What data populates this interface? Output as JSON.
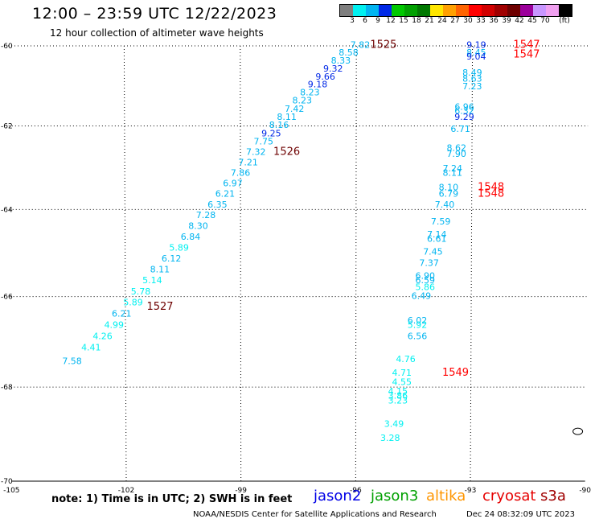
{
  "header": {
    "title": "12:00 – 23:59 UTC 12/22/2023",
    "subtitle": "12 hour collection of altimeter wave heights"
  },
  "colorbar": {
    "colors": [
      "#7f7f7f",
      "#00f0f0",
      "#00b4f0",
      "#0028e6",
      "#00c800",
      "#00a000",
      "#007800",
      "#ffe600",
      "#ffa000",
      "#ff6400",
      "#ff0000",
      "#d20000",
      "#a00000",
      "#6e0000",
      "#9b009b",
      "#c896ff",
      "#f0a0f0",
      "#000000"
    ],
    "labels": [
      "3",
      "6",
      "9",
      "12",
      "15",
      "18",
      "21",
      "24",
      "27",
      "30",
      "33",
      "36",
      "39",
      "42",
      "45",
      "70"
    ],
    "unit": "(ft)"
  },
  "map": {
    "lon_range": [
      -105,
      -90
    ],
    "lat_range": [
      -70,
      -60
    ],
    "lon_ticks": [
      "-105",
      "-102",
      "-99",
      "-96",
      "-93",
      "-90"
    ],
    "lon_tick_values": [
      -105,
      -102,
      -99,
      -96,
      -93,
      -90
    ],
    "lat_ticks": [
      "-60",
      "-62",
      "-64",
      "-66",
      "-68",
      "-70"
    ],
    "lat_tick_values": [
      -60,
      -62,
      -64,
      -66,
      -68,
      -70
    ]
  },
  "chart_data": {
    "type": "scatter",
    "xlabel": "",
    "ylabel": "",
    "series": [
      {
        "points": [
          {
            "lon": -95.9,
            "lat": -60.05,
            "v": "7.82",
            "c": "#00b4f0"
          },
          {
            "lon": -96.2,
            "lat": -60.25,
            "v": "8.58",
            "c": "#00b4f0"
          },
          {
            "lon": -96.4,
            "lat": -60.45,
            "v": "8.33",
            "c": "#00b4f0"
          },
          {
            "lon": -96.6,
            "lat": -60.65,
            "v": "9.32",
            "c": "#0028e6"
          },
          {
            "lon": -96.8,
            "lat": -60.85,
            "v": "9.66",
            "c": "#0028e6"
          },
          {
            "lon": -97.0,
            "lat": -61.05,
            "v": "9.18",
            "c": "#0028e6"
          },
          {
            "lon": -97.2,
            "lat": -61.25,
            "v": "8.23",
            "c": "#00b4f0"
          },
          {
            "lon": -97.4,
            "lat": -61.45,
            "v": "8.23",
            "c": "#00b4f0"
          },
          {
            "lon": -97.6,
            "lat": -61.65,
            "v": "7.42",
            "c": "#00b4f0"
          },
          {
            "lon": -97.8,
            "lat": -61.85,
            "v": "8.11",
            "c": "#00b4f0"
          },
          {
            "lon": -98.0,
            "lat": -62.05,
            "v": "8.16",
            "c": "#00b4f0"
          },
          {
            "lon": -98.2,
            "lat": -62.25,
            "v": "9.25",
            "c": "#0028e6"
          },
          {
            "lon": -98.4,
            "lat": -62.45,
            "v": "7.75",
            "c": "#00b4f0"
          },
          {
            "lon": -98.6,
            "lat": -62.7,
            "v": "7.32",
            "c": "#00b4f0"
          },
          {
            "lon": -98.8,
            "lat": -62.95,
            "v": "7.21",
            "c": "#00b4f0"
          },
          {
            "lon": -99.0,
            "lat": -63.2,
            "v": "7.86",
            "c": "#00b4f0"
          },
          {
            "lon": -99.2,
            "lat": -63.45,
            "v": "6.97",
            "c": "#00b4f0"
          },
          {
            "lon": -99.4,
            "lat": -63.7,
            "v": "6.21",
            "c": "#00b4f0"
          },
          {
            "lon": -99.6,
            "lat": -63.95,
            "v": "6.35",
            "c": "#00b4f0"
          },
          {
            "lon": -99.9,
            "lat": -64.2,
            "v": "7.28",
            "c": "#00b4f0"
          },
          {
            "lon": -100.1,
            "lat": -64.45,
            "v": "8.30",
            "c": "#00b4f0"
          },
          {
            "lon": -100.3,
            "lat": -64.7,
            "v": "6.84",
            "c": "#00b4f0"
          },
          {
            "lon": -100.6,
            "lat": -64.95,
            "v": "5.89",
            "c": "#00f0f0"
          },
          {
            "lon": -100.8,
            "lat": -65.2,
            "v": "6.12",
            "c": "#00b4f0"
          },
          {
            "lon": -101.1,
            "lat": -65.45,
            "v": "8.11",
            "c": "#00b4f0"
          },
          {
            "lon": -101.3,
            "lat": -65.7,
            "v": "5.14",
            "c": "#00f0f0"
          },
          {
            "lon": -101.6,
            "lat": -65.95,
            "v": "5.78",
            "c": "#00f0f0"
          },
          {
            "lon": -101.8,
            "lat": -66.2,
            "v": "5.89",
            "c": "#00f0f0"
          },
          {
            "lon": -102.1,
            "lat": -66.45,
            "v": "6.21",
            "c": "#00b4f0"
          },
          {
            "lon": -102.3,
            "lat": -66.7,
            "v": "4.99",
            "c": "#00f0f0"
          },
          {
            "lon": -102.6,
            "lat": -66.95,
            "v": "4.26",
            "c": "#00f0f0"
          },
          {
            "lon": -102.9,
            "lat": -67.2,
            "v": "4.41",
            "c": "#00f0f0"
          },
          {
            "lon": -103.4,
            "lat": -67.5,
            "v": "7.58",
            "c": "#00b4f0"
          },
          {
            "lon": -92.9,
            "lat": -60.05,
            "v": "9.19",
            "c": "#0028e6"
          },
          {
            "lon": -92.9,
            "lat": -60.25,
            "v": "8.45",
            "c": "#00b4f0"
          },
          {
            "lon": -92.9,
            "lat": -60.35,
            "v": "9.04",
            "c": "#0028e6"
          },
          {
            "lon": -93.0,
            "lat": -60.75,
            "v": "8.49",
            "c": "#00b4f0"
          },
          {
            "lon": -93.0,
            "lat": -60.9,
            "v": "8.63",
            "c": "#00b4f0"
          },
          {
            "lon": -93.0,
            "lat": -61.1,
            "v": "7.23",
            "c": "#00b4f0"
          },
          {
            "lon": -93.2,
            "lat": -61.6,
            "v": "6.96",
            "c": "#00b4f0"
          },
          {
            "lon": -93.2,
            "lat": -61.7,
            "v": "6.32",
            "c": "#00b4f0"
          },
          {
            "lon": -93.2,
            "lat": -61.85,
            "v": "9.29",
            "c": "#0028e6"
          },
          {
            "lon": -93.3,
            "lat": -62.15,
            "v": "6.71",
            "c": "#00b4f0"
          },
          {
            "lon": -93.4,
            "lat": -62.6,
            "v": "8.62",
            "c": "#00b4f0"
          },
          {
            "lon": -93.4,
            "lat": -62.75,
            "v": "7.90",
            "c": "#00b4f0"
          },
          {
            "lon": -93.5,
            "lat": -63.1,
            "v": "7.24",
            "c": "#00b4f0"
          },
          {
            "lon": -93.5,
            "lat": -63.2,
            "v": "8.11",
            "c": "#00b4f0"
          },
          {
            "lon": -93.6,
            "lat": -63.55,
            "v": "8.10",
            "c": "#00b4f0"
          },
          {
            "lon": -93.6,
            "lat": -63.7,
            "v": "6.79",
            "c": "#00b4f0"
          },
          {
            "lon": -93.7,
            "lat": -63.95,
            "v": "7.40",
            "c": "#00b4f0"
          },
          {
            "lon": -93.8,
            "lat": -64.35,
            "v": "7.59",
            "c": "#00b4f0"
          },
          {
            "lon": -93.9,
            "lat": -64.65,
            "v": "7.14",
            "c": "#00b4f0"
          },
          {
            "lon": -93.9,
            "lat": -64.75,
            "v": "6.61",
            "c": "#00b4f0"
          },
          {
            "lon": -94.0,
            "lat": -65.05,
            "v": "7.45",
            "c": "#00b4f0"
          },
          {
            "lon": -94.1,
            "lat": -65.3,
            "v": "7.37",
            "c": "#00b4f0"
          },
          {
            "lon": -94.2,
            "lat": -65.6,
            "v": "6.90",
            "c": "#00b4f0"
          },
          {
            "lon": -94.2,
            "lat": -65.7,
            "v": "6.59",
            "c": "#00b4f0"
          },
          {
            "lon": -94.2,
            "lat": -65.85,
            "v": "5.86",
            "c": "#00f0f0"
          },
          {
            "lon": -94.3,
            "lat": -66.05,
            "v": "6.49",
            "c": "#00b4f0"
          },
          {
            "lon": -94.4,
            "lat": -66.6,
            "v": "6.02",
            "c": "#00b4f0"
          },
          {
            "lon": -94.4,
            "lat": -66.7,
            "v": "5.92",
            "c": "#00f0f0"
          },
          {
            "lon": -94.4,
            "lat": -66.95,
            "v": "6.56",
            "c": "#00b4f0"
          },
          {
            "lon": -94.7,
            "lat": -67.45,
            "v": "4.76",
            "c": "#00f0f0"
          },
          {
            "lon": -94.8,
            "lat": -67.75,
            "v": "4.71",
            "c": "#00f0f0"
          },
          {
            "lon": -94.8,
            "lat": -67.95,
            "v": "4.55",
            "c": "#00f0f0"
          },
          {
            "lon": -94.9,
            "lat": -68.15,
            "v": "4.15",
            "c": "#00f0f0"
          },
          {
            "lon": -94.9,
            "lat": -68.25,
            "v": "3.86",
            "c": "#00f0f0"
          },
          {
            "lon": -94.9,
            "lat": -68.35,
            "v": "3.23",
            "c": "#00f0f0"
          },
          {
            "lon": -95.0,
            "lat": -68.85,
            "v": "3.49",
            "c": "#00f0f0"
          },
          {
            "lon": -95.1,
            "lat": -69.15,
            "v": "3.28",
            "c": "#00f0f0"
          }
        ]
      }
    ],
    "time_labels": [
      {
        "lon": -95.3,
        "lat": -60.05,
        "v": "1525",
        "c": "#6e0000"
      },
      {
        "lon": -97.8,
        "lat": -62.7,
        "v": "1526",
        "c": "#6e0000"
      },
      {
        "lon": -101.1,
        "lat": -66.3,
        "v": "1527",
        "c": "#6e0000"
      },
      {
        "lon": -91.6,
        "lat": -60.05,
        "v": "1547",
        "c": "#ff0000"
      },
      {
        "lon": -91.6,
        "lat": -60.3,
        "v": "1547",
        "c": "#ff0000"
      },
      {
        "lon": -92.5,
        "lat": -63.55,
        "v": "1548",
        "c": "#ff0000"
      },
      {
        "lon": -92.5,
        "lat": -63.7,
        "v": "1548",
        "c": "#ff0000"
      },
      {
        "lon": -93.4,
        "lat": -67.75,
        "v": "1549",
        "c": "#ff0000"
      }
    ],
    "islands": [
      {
        "lon": -90.2,
        "lat": -68.95
      }
    ]
  },
  "footer": {
    "note": "note: 1) Time is in UTC; 2) SWH is in feet",
    "satellites": [
      {
        "name": "jason2",
        "color": "#0000e6"
      },
      {
        "name": "jason3",
        "color": "#00a000"
      },
      {
        "name": "altika",
        "color": "#ff9600"
      },
      {
        "name": "cryosat",
        "color": "#e60000"
      },
      {
        "name": "s3a",
        "color": "#a00000"
      }
    ],
    "credit": "NOAA/NESDIS Center for Satellite Applications and Research",
    "timestamp": "Dec 24 08:32:09 UTC 2023"
  }
}
